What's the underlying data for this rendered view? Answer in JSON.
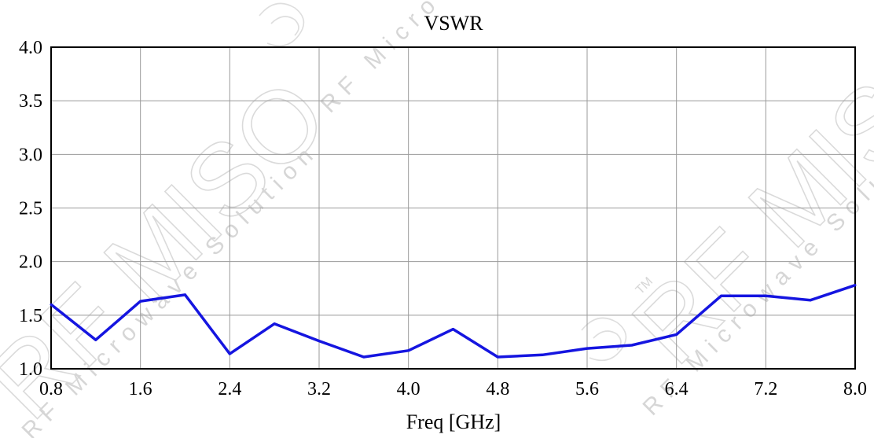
{
  "chart_data": {
    "type": "line",
    "title": "VSWR",
    "xlabel": "Freq [GHz]",
    "ylabel": "",
    "xlim": [
      0.8,
      8.0
    ],
    "ylim": [
      1.0,
      4.0
    ],
    "x_ticks": [
      "0.8",
      "1.6",
      "2.4",
      "3.2",
      "4.0",
      "4.8",
      "5.6",
      "6.4",
      "7.2",
      "8.0"
    ],
    "y_ticks": [
      "1.0",
      "1.5",
      "2.0",
      "2.5",
      "3.0",
      "3.5",
      "4.0"
    ],
    "grid": true,
    "series": [
      {
        "color": "#1515e0",
        "x": [
          0.8,
          1.2,
          1.6,
          2.0,
          2.4,
          2.8,
          3.2,
          3.6,
          4.0,
          4.4,
          4.8,
          5.2,
          5.6,
          6.0,
          6.4,
          6.8,
          7.2,
          7.6,
          8.0
        ],
        "y": [
          1.6,
          1.27,
          1.63,
          1.69,
          1.14,
          1.42,
          1.26,
          1.11,
          1.17,
          1.37,
          1.11,
          1.13,
          1.19,
          1.22,
          1.32,
          1.68,
          1.68,
          1.64,
          1.78
        ]
      }
    ]
  },
  "watermark": {
    "brand": "RF MISO",
    "tagline": "RF Microwave Solution",
    "trademark": "TM"
  }
}
